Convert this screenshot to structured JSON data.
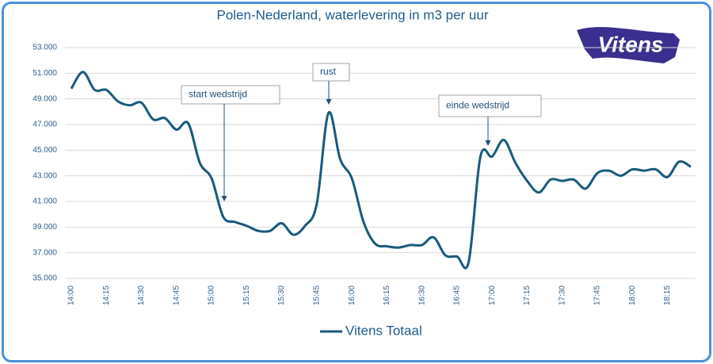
{
  "chart_data": {
    "type": "line",
    "title": "Polen-Nederland, waterlevering in m3 per uur",
    "logo": "Vitens",
    "categories": [
      "14:00",
      null,
      null,
      "14:15",
      null,
      null,
      "14:30",
      null,
      null,
      "14:45",
      null,
      null,
      "15:00",
      null,
      null,
      "15:15",
      null,
      null,
      "15:30",
      null,
      null,
      "15:45",
      null,
      null,
      "16:00",
      null,
      null,
      "16:15",
      null,
      null,
      "16:30",
      null,
      null,
      "16:45",
      null,
      null,
      "17:00",
      null,
      null,
      "17:15",
      null,
      null,
      "17:30",
      null,
      null,
      "17:45",
      null,
      null,
      "18:00",
      null,
      null,
      "18:15",
      null,
      null
    ],
    "series": [
      {
        "name": "Vitens Totaal",
        "color": "#175a7c",
        "values": [
          49800,
          51100,
          49700,
          49700,
          48800,
          48500,
          48700,
          47400,
          47500,
          46600,
          47100,
          44000,
          42800,
          39800,
          39400,
          39100,
          38700,
          38700,
          39300,
          38400,
          39100,
          40800,
          47900,
          44300,
          42800,
          39400,
          37700,
          37500,
          37400,
          37600,
          37600,
          38200,
          36800,
          36700,
          36300,
          44500,
          44500,
          45800,
          44000,
          42600,
          41700,
          42700,
          42600,
          42700,
          42000,
          43200,
          43400,
          43000,
          43500,
          43400,
          43500,
          42900,
          44100,
          43700
        ]
      }
    ],
    "ylim": [
      35000,
      53000
    ],
    "yticks": [
      {
        "value": 35000,
        "label": "35.000"
      },
      {
        "value": 37000,
        "label": "37.000"
      },
      {
        "value": 39000,
        "label": "39.000"
      },
      {
        "value": 41000,
        "label": "41.000"
      },
      {
        "value": 43000,
        "label": "43.000"
      },
      {
        "value": 45000,
        "label": "45.000"
      },
      {
        "value": 47000,
        "label": "47.000"
      },
      {
        "value": 49000,
        "label": "49.000"
      },
      {
        "value": 51000,
        "label": "51.000"
      },
      {
        "value": 53000,
        "label": "53.000"
      }
    ],
    "grid": true,
    "legend": "bottom",
    "annotations": [
      {
        "text": "start wedstrijd"
      },
      {
        "text": "rust"
      },
      {
        "text": "einde wedstrijd"
      }
    ]
  }
}
